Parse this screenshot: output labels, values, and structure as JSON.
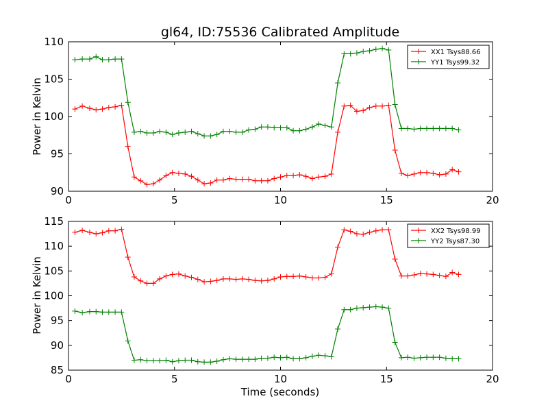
{
  "chart_data": [
    {
      "type": "line",
      "title": "gl64, ID:75536 Calibrated Amplitude",
      "xlabel": "",
      "ylabel": "Power in Kelvin",
      "xlim": [
        0,
        20
      ],
      "ylim": [
        90,
        110
      ],
      "xticks": [
        0,
        5,
        10,
        15,
        20
      ],
      "yticks": [
        90,
        95,
        100,
        105,
        110
      ],
      "legend": "top-right",
      "grid": false,
      "x": [
        0.3,
        0.65,
        1.0,
        1.3,
        1.6,
        1.9,
        2.2,
        2.5,
        2.8,
        3.1,
        3.4,
        3.7,
        4.0,
        4.3,
        4.6,
        4.9,
        5.2,
        5.5,
        5.8,
        6.1,
        6.4,
        6.7,
        7.0,
        7.3,
        7.6,
        7.9,
        8.2,
        8.5,
        8.8,
        9.1,
        9.4,
        9.7,
        10.0,
        10.3,
        10.6,
        10.9,
        11.2,
        11.5,
        11.8,
        12.1,
        12.4,
        12.7,
        13.0,
        13.3,
        13.6,
        13.9,
        14.2,
        14.5,
        14.8,
        15.1,
        15.4,
        15.7,
        16.0,
        16.3,
        16.6,
        16.9,
        17.2,
        17.5,
        17.8,
        18.1,
        18.4
      ],
      "series": [
        {
          "name": "XX1 Tsys88.66",
          "color": "#ff0000",
          "values": [
            101.0,
            101.4,
            101.1,
            100.9,
            101.0,
            101.2,
            101.3,
            101.5,
            96.0,
            91.9,
            91.4,
            90.9,
            91.0,
            91.5,
            92.1,
            92.5,
            92.4,
            92.3,
            92.0,
            91.5,
            91.0,
            91.1,
            91.5,
            91.5,
            91.7,
            91.6,
            91.6,
            91.6,
            91.4,
            91.4,
            91.4,
            91.7,
            91.9,
            92.1,
            92.1,
            92.2,
            92.0,
            91.7,
            91.9,
            92.0,
            92.3,
            97.9,
            101.4,
            101.5,
            100.7,
            100.8,
            101.2,
            101.4,
            101.4,
            101.5,
            95.5,
            92.4,
            92.1,
            92.3,
            92.5,
            92.5,
            92.4,
            92.2,
            92.3,
            92.9,
            92.6
          ]
        },
        {
          "name": "YY1 Tsys99.32",
          "color": "#008000",
          "values": [
            107.6,
            107.7,
            107.7,
            108.0,
            107.6,
            107.6,
            107.7,
            107.7,
            101.9,
            97.9,
            98.0,
            97.8,
            97.8,
            98.0,
            97.9,
            97.6,
            97.8,
            97.9,
            98.0,
            97.7,
            97.4,
            97.4,
            97.6,
            98.0,
            98.0,
            97.9,
            97.9,
            98.2,
            98.3,
            98.6,
            98.6,
            98.5,
            98.5,
            98.5,
            98.1,
            98.1,
            98.3,
            98.6,
            99.0,
            98.8,
            98.6,
            104.5,
            108.4,
            108.4,
            108.5,
            108.7,
            108.8,
            109.0,
            109.1,
            108.9,
            101.6,
            98.4,
            98.4,
            98.3,
            98.4,
            98.4,
            98.4,
            98.4,
            98.4,
            98.4,
            98.2
          ]
        }
      ]
    },
    {
      "type": "line",
      "title": "",
      "xlabel": "Time (seconds)",
      "ylabel": "Power in Kelvin",
      "xlim": [
        0,
        20
      ],
      "ylim": [
        85,
        115
      ],
      "xticks": [
        0,
        5,
        10,
        15,
        20
      ],
      "yticks": [
        85,
        90,
        95,
        100,
        105,
        110,
        115
      ],
      "legend": "top-right",
      "grid": false,
      "x": [
        0.3,
        0.65,
        1.0,
        1.3,
        1.6,
        1.9,
        2.2,
        2.5,
        2.8,
        3.1,
        3.4,
        3.7,
        4.0,
        4.3,
        4.6,
        4.9,
        5.2,
        5.5,
        5.8,
        6.1,
        6.4,
        6.7,
        7.0,
        7.3,
        7.6,
        7.9,
        8.2,
        8.5,
        8.8,
        9.1,
        9.4,
        9.7,
        10.0,
        10.3,
        10.6,
        10.9,
        11.2,
        11.5,
        11.8,
        12.1,
        12.4,
        12.7,
        13.0,
        13.3,
        13.6,
        13.9,
        14.2,
        14.5,
        14.8,
        15.1,
        15.4,
        15.7,
        16.0,
        16.3,
        16.6,
        16.9,
        17.2,
        17.5,
        17.8,
        18.1,
        18.4
      ],
      "series": [
        {
          "name": "XX2 Tsys98.99",
          "color": "#ff0000",
          "values": [
            112.8,
            113.2,
            112.8,
            112.5,
            112.7,
            113.1,
            113.1,
            113.4,
            107.8,
            103.8,
            103.0,
            102.5,
            102.5,
            103.4,
            104.0,
            104.3,
            104.4,
            104.0,
            103.7,
            103.3,
            102.8,
            102.9,
            103.1,
            103.4,
            103.4,
            103.3,
            103.4,
            103.3,
            103.1,
            103.0,
            103.1,
            103.4,
            103.8,
            103.9,
            103.9,
            104.0,
            103.8,
            103.6,
            103.6,
            103.7,
            104.4,
            109.8,
            113.3,
            113.0,
            112.5,
            112.4,
            112.8,
            113.1,
            113.3,
            113.3,
            107.4,
            104.0,
            104.0,
            104.2,
            104.5,
            104.4,
            104.3,
            104.1,
            103.9,
            104.7,
            104.3
          ]
        },
        {
          "name": "YY2 Tsys87.30",
          "color": "#008000",
          "values": [
            96.9,
            96.6,
            96.8,
            96.8,
            96.7,
            96.7,
            96.7,
            96.7,
            90.9,
            87.0,
            87.1,
            86.9,
            86.9,
            86.9,
            87.0,
            86.7,
            86.9,
            87.0,
            87.0,
            86.7,
            86.6,
            86.6,
            86.8,
            87.1,
            87.3,
            87.2,
            87.2,
            87.2,
            87.2,
            87.4,
            87.4,
            87.6,
            87.5,
            87.6,
            87.3,
            87.3,
            87.5,
            87.8,
            88.0,
            87.9,
            87.7,
            93.3,
            97.2,
            97.2,
            97.5,
            97.6,
            97.7,
            97.8,
            97.7,
            97.5,
            90.6,
            87.5,
            87.6,
            87.4,
            87.5,
            87.6,
            87.6,
            87.6,
            87.4,
            87.3,
            87.3
          ]
        }
      ]
    }
  ]
}
